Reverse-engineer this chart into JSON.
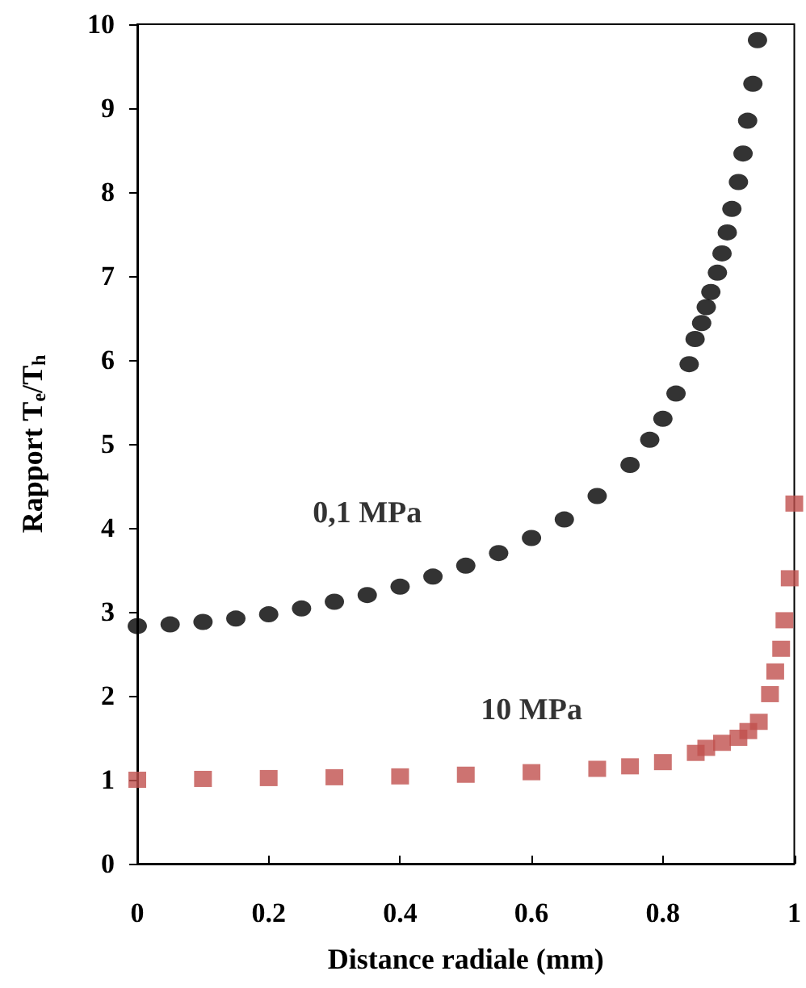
{
  "chart_data": {
    "type": "scatter",
    "xlabel": "Distance radiale (mm)",
    "ylabel": "Rapport T$_{e}$/T$_{h}$",
    "xlim": [
      0,
      1
    ],
    "xticks": [
      0,
      0.2,
      0.4,
      0.6,
      0.8,
      1
    ],
    "ylim": [
      0,
      10
    ],
    "yticks": [
      0,
      1,
      2,
      3,
      4,
      5,
      6,
      7,
      8,
      9,
      10
    ],
    "grid": false,
    "series": [
      {
        "name": "0,1 MPa",
        "color": "#000000",
        "marker": "circle",
        "x": [
          0,
          0.05,
          0.1,
          0.15,
          0.2,
          0.25,
          0.3,
          0.35,
          0.4,
          0.45,
          0.5,
          0.55,
          0.6,
          0.65,
          0.7,
          0.75,
          0.78,
          0.8,
          0.82,
          0.84,
          0.849,
          0.859,
          0.866,
          0.873,
          0.883,
          0.89,
          0.898,
          0.905,
          0.915,
          0.922,
          0.929,
          0.937,
          0.944
        ],
        "values": [
          2.83,
          2.85,
          2.88,
          2.92,
          2.97,
          3.04,
          3.12,
          3.2,
          3.3,
          3.42,
          3.55,
          3.7,
          3.88,
          4.1,
          4.38,
          4.75,
          5.05,
          5.3,
          5.6,
          5.95,
          6.25,
          6.44,
          6.63,
          6.81,
          7.04,
          7.27,
          7.52,
          7.8,
          8.12,
          8.46,
          8.85,
          9.29,
          9.81
        ]
      },
      {
        "name": "10 MPa",
        "color": "#c0504d",
        "marker": "square",
        "x": [
          0,
          0.1,
          0.2,
          0.3,
          0.4,
          0.5,
          0.6,
          0.7,
          0.75,
          0.8,
          0.85,
          0.866,
          0.89,
          0.915,
          0.93,
          0.946,
          0.963,
          0.971,
          0.98,
          0.985,
          0.993,
          1.0
        ],
        "values": [
          1.0,
          1.01,
          1.02,
          1.03,
          1.04,
          1.06,
          1.09,
          1.13,
          1.16,
          1.21,
          1.32,
          1.38,
          1.44,
          1.5,
          1.58,
          1.69,
          2.02,
          2.29,
          2.56,
          2.9,
          3.4,
          4.29
        ]
      }
    ]
  }
}
